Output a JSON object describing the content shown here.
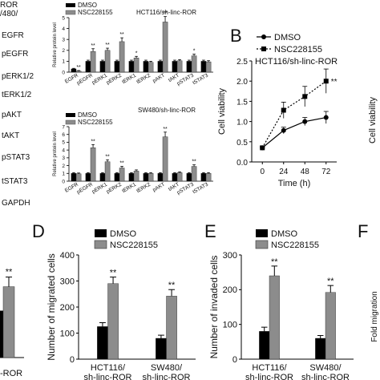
{
  "panel_labels": {
    "B": "B",
    "D": "D",
    "E": "E",
    "F": "F"
  },
  "western_blot": {
    "header_label": "/480/",
    "header_label_top": "ROR",
    "bands": [
      "EGFR",
      "pEGFR",
      "pERK1/2",
      "tERK1/2",
      "pAKT",
      "tAKT",
      "pSTAT3",
      "tSTAT3",
      "GAPDH"
    ]
  },
  "colors": {
    "dmso": "#000000",
    "nsc": "#8c8c8c"
  },
  "chart_data": [
    {
      "id": "protein-hct116",
      "type": "bar",
      "title": "HCT116/sh-linc-ROR",
      "ylabel": "Relative protein level",
      "legend": [
        "DMSO",
        "NSC228155"
      ],
      "categories": [
        "EGFR",
        "pEGFR",
        "pERK1",
        "pERK2",
        "tERK1",
        "tERK2",
        "pAKT",
        "tAKT",
        "pSTAT3",
        "tSTAT3"
      ],
      "ylim": [
        0,
        5
      ],
      "yticks": [
        "0",
        "1",
        "2",
        "3",
        "4",
        "5"
      ],
      "series": [
        {
          "name": "DMSO",
          "values": [
            0.3,
            1,
            1,
            1,
            1,
            1,
            1,
            1,
            1,
            1
          ],
          "errors": [
            0.05,
            0.1,
            0.1,
            0.1,
            0.1,
            0.1,
            0.1,
            0.1,
            0.1,
            0.1
          ]
        },
        {
          "name": "NSC228155",
          "values": [
            0.1,
            1.9,
            2.0,
            2.8,
            1.3,
            0.9,
            4.6,
            1.05,
            1.5,
            0.95
          ],
          "errors": [
            0.05,
            0.25,
            0.2,
            0.35,
            0.15,
            0.1,
            0.5,
            0.1,
            0.15,
            0.1
          ]
        }
      ],
      "annotations": [
        "**",
        "**",
        "**",
        "**",
        "*",
        "",
        "**",
        "",
        "*",
        ""
      ]
    },
    {
      "id": "protein-sw480",
      "type": "bar",
      "title": "SW480/sh-linc-ROR",
      "ylabel": "Relative protein level",
      "legend": [
        "DMSO",
        "NSC228155"
      ],
      "categories": [
        "EGFR",
        "pEGFR",
        "pERK1",
        "pERK2",
        "tERK1",
        "tERK2",
        "pAKT",
        "tAKT",
        "pSTAT3",
        "tSTAT3"
      ],
      "ylim": [
        0,
        7
      ],
      "yticks": [
        "0",
        "1",
        "2",
        "3",
        "4",
        "5",
        "6",
        "7"
      ],
      "series": [
        {
          "name": "DMSO",
          "values": [
            1,
            1,
            1,
            1,
            1,
            1,
            1,
            1,
            1,
            1
          ],
          "errors": [
            0.1,
            0.1,
            0.1,
            0.1,
            0.1,
            0.1,
            0.1,
            0.1,
            0.1,
            0.1
          ]
        },
        {
          "name": "NSC228155",
          "values": [
            0.95,
            4.3,
            2.5,
            1.7,
            1.3,
            1.0,
            5.7,
            1.1,
            1.9,
            1.0
          ],
          "errors": [
            0.1,
            0.4,
            0.25,
            0.2,
            0.15,
            0.1,
            0.6,
            0.1,
            0.2,
            0.1
          ]
        }
      ],
      "annotations": [
        "",
        "**",
        "**",
        "**",
        "",
        "",
        "**",
        "",
        "**",
        ""
      ]
    },
    {
      "id": "viability-hct116",
      "type": "line",
      "title": "HCT116/sh-linc-ROR",
      "xlabel": "Time (h)",
      "ylabel": "Cell viability",
      "legend": [
        "DMSO",
        "NSC228155"
      ],
      "x": [
        0,
        24,
        48,
        72
      ],
      "xticks": [
        "0",
        "24",
        "48",
        "72"
      ],
      "ylim": [
        0,
        2.5
      ],
      "yticks": [
        "0.0",
        "0.5",
        "1.0",
        "1.5",
        "2.0",
        "2.5"
      ],
      "series": [
        {
          "name": "DMSO",
          "values": [
            0.35,
            0.78,
            1.0,
            1.1
          ],
          "errors": [
            0.03,
            0.08,
            0.1,
            0.15
          ]
        },
        {
          "name": "NSC228155",
          "values": [
            0.35,
            1.28,
            1.62,
            2.0
          ],
          "errors": [
            0.03,
            0.2,
            0.25,
            0.3
          ]
        }
      ],
      "annotation": "**",
      "right_panel_ylabel": "Cell viability"
    },
    {
      "id": "migration",
      "type": "bar",
      "ylabel": "Number of migrated cells",
      "legend": [
        "DMSO",
        "NSC228155"
      ],
      "categories": [
        "HCT116/\nsh-linc-ROR",
        "SW480/\nsh-linc-ROR"
      ],
      "ylim": [
        0,
        400
      ],
      "yticks": [
        "0",
        "100",
        "200",
        "300",
        "400"
      ],
      "series": [
        {
          "name": "DMSO",
          "values": [
            125,
            80
          ],
          "errors": [
            15,
            12
          ]
        },
        {
          "name": "NSC228155",
          "values": [
            290,
            242
          ],
          "errors": [
            25,
            25
          ]
        }
      ],
      "annotations": [
        "**",
        "**"
      ]
    },
    {
      "id": "invasion",
      "type": "bar",
      "ylabel": "Number of invaded cells",
      "legend": [
        "DMSO",
        "NSC228155"
      ],
      "categories": [
        "HCT116/\nsh-linc-ROR",
        "SW480/\nsh-linc-ROR"
      ],
      "ylim": [
        0,
        300
      ],
      "yticks": [
        "0",
        "100",
        "200",
        "300"
      ],
      "series": [
        {
          "name": "DMSO",
          "values": [
            80,
            60
          ],
          "errors": [
            12,
            8
          ]
        },
        {
          "name": "NSC228155",
          "values": [
            240,
            192
          ],
          "errors": [
            28,
            20
          ]
        }
      ],
      "annotations": [
        "**",
        "**"
      ]
    },
    {
      "id": "left-partial",
      "type": "bar",
      "categories": [
        "-ROR"
      ],
      "series": [
        {
          "name": "DMSO",
          "values": [
            0.45
          ]
        },
        {
          "name": "NSC228155",
          "values": [
            1.0
          ]
        }
      ],
      "annotations": [
        "**"
      ]
    },
    {
      "id": "fold-migration",
      "type": "bar",
      "ylabel": "Fold migration"
    }
  ]
}
